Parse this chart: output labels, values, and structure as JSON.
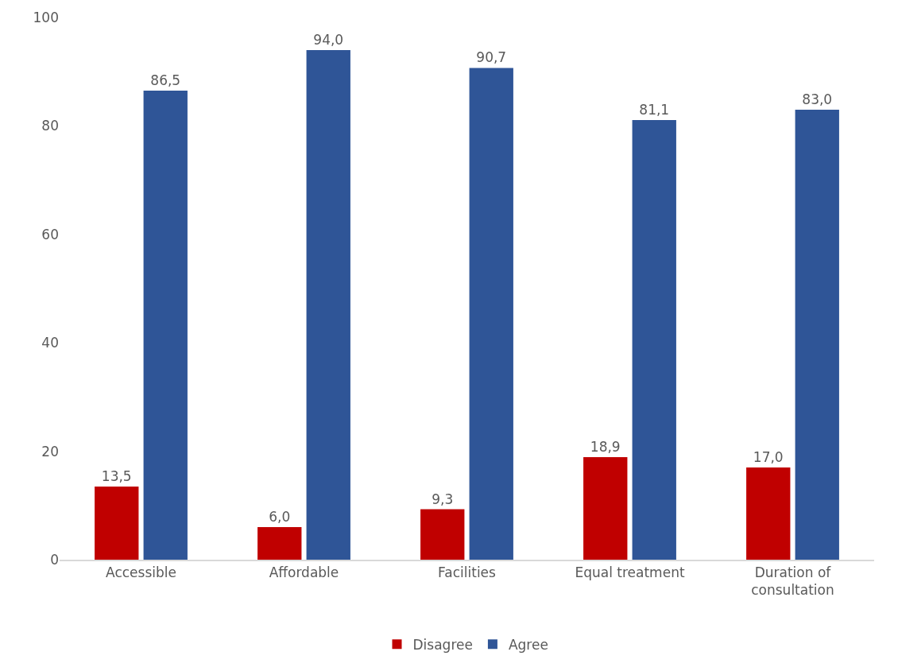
{
  "chart_data": {
    "type": "bar",
    "categories": [
      "Accessible",
      "Affordable",
      "Facilities",
      "Equal treatment",
      "Duration of consultation"
    ],
    "series": [
      {
        "name": "Disagree",
        "color": "#c00000",
        "values": [
          13.5,
          6.0,
          9.3,
          18.9,
          17.0
        ],
        "value_labels": [
          "13,5",
          "6,0",
          "9,3",
          "18,9",
          "17,0"
        ]
      },
      {
        "name": "Agree",
        "color": "#2f5597",
        "values": [
          86.5,
          94.0,
          90.7,
          81.1,
          83.0
        ],
        "value_labels": [
          "86,5",
          "94,0",
          "90,7",
          "81,1",
          "83,0"
        ]
      }
    ],
    "ylim": [
      0,
      100
    ],
    "yticks": [
      0,
      20,
      40,
      60,
      80,
      100
    ],
    "grid": false,
    "legend": "bottom"
  }
}
